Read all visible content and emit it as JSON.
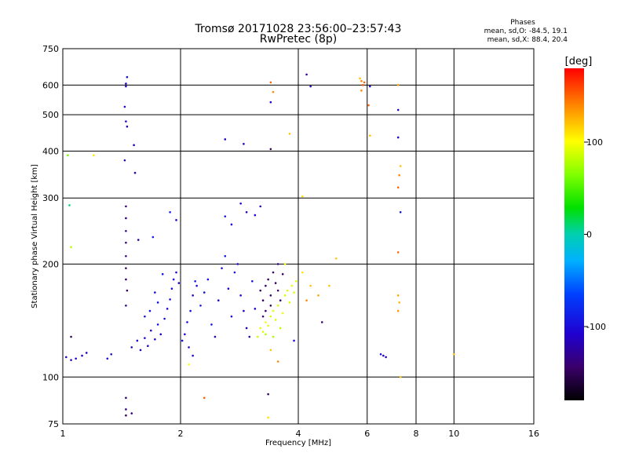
{
  "chart_data": {
    "type": "scatter",
    "title": "Tromsø 20171028 23:56:00–23:57:43",
    "subtitle": "RwPretec (8p)",
    "xlabel": "Frequency [MHz]",
    "ylabel": "Stationary phase Virtual Height [km]",
    "x_scale": "log",
    "y_scale": "log",
    "xlim": [
      1,
      16
    ],
    "ylim": [
      75,
      750
    ],
    "x_ticks": [
      "1",
      "2",
      "4",
      "6",
      "8",
      "10",
      "16"
    ],
    "x_tick_values": [
      1,
      2,
      4,
      6,
      8,
      10,
      16
    ],
    "y_ticks": [
      "75",
      "100",
      "200",
      "300",
      "400",
      "500",
      "600",
      "750"
    ],
    "y_tick_values": [
      75,
      100,
      200,
      300,
      400,
      500,
      600,
      750
    ],
    "grid": true,
    "phase_stats": {
      "heading": "Phases",
      "line_o": "mean, sd,O: -84.5, 19.1",
      "line_x": "mean, sd,X:  88.4, 20.4"
    },
    "colorbar": {
      "label": "[deg]",
      "range": [
        -180,
        180
      ],
      "ticks": [
        "100",
        "0",
        "-100"
      ],
      "tick_values": [
        100,
        0,
        -100
      ]
    },
    "points": [
      {
        "f": 1.02,
        "h": 113,
        "p": -110
      },
      {
        "f": 1.05,
        "h": 111,
        "p": -115
      },
      {
        "f": 1.08,
        "h": 112,
        "p": -110
      },
      {
        "f": 1.12,
        "h": 114,
        "p": -105
      },
      {
        "f": 1.15,
        "h": 116,
        "p": -108
      },
      {
        "f": 1.05,
        "h": 128,
        "p": -150
      },
      {
        "f": 1.3,
        "h": 112,
        "p": -110
      },
      {
        "f": 1.33,
        "h": 115,
        "p": -100
      },
      {
        "f": 1.03,
        "h": 390,
        "p": 60
      },
      {
        "f": 1.04,
        "h": 287,
        "p": 10
      },
      {
        "f": 1.05,
        "h": 222,
        "p": 80
      },
      {
        "f": 1.2,
        "h": 390,
        "p": 110
      },
      {
        "f": 1.45,
        "h": 605,
        "p": -120
      },
      {
        "f": 1.45,
        "h": 595,
        "p": -110
      },
      {
        "f": 1.46,
        "h": 630,
        "p": -95
      },
      {
        "f": 1.44,
        "h": 525,
        "p": -105
      },
      {
        "f": 1.45,
        "h": 480,
        "p": -100
      },
      {
        "f": 1.46,
        "h": 465,
        "p": -110
      },
      {
        "f": 1.44,
        "h": 378,
        "p": -120
      },
      {
        "f": 1.52,
        "h": 415,
        "p": -115
      },
      {
        "f": 1.53,
        "h": 350,
        "p": -120
      },
      {
        "f": 1.45,
        "h": 285,
        "p": -140
      },
      {
        "f": 1.45,
        "h": 265,
        "p": -135
      },
      {
        "f": 1.45,
        "h": 245,
        "p": -130
      },
      {
        "f": 1.45,
        "h": 228,
        "p": -140
      },
      {
        "f": 1.45,
        "h": 210,
        "p": -135
      },
      {
        "f": 1.45,
        "h": 195,
        "p": -145
      },
      {
        "f": 1.45,
        "h": 182,
        "p": -140
      },
      {
        "f": 1.46,
        "h": 170,
        "p": -150
      },
      {
        "f": 1.45,
        "h": 155,
        "p": -130
      },
      {
        "f": 1.56,
        "h": 232,
        "p": -120
      },
      {
        "f": 1.45,
        "h": 88,
        "p": -140
      },
      {
        "f": 1.45,
        "h": 82,
        "p": -135
      },
      {
        "f": 1.45,
        "h": 79,
        "p": -150
      },
      {
        "f": 1.5,
        "h": 80,
        "p": -140
      },
      {
        "f": 1.5,
        "h": 120,
        "p": -115
      },
      {
        "f": 1.55,
        "h": 125,
        "p": -110
      },
      {
        "f": 1.58,
        "h": 118,
        "p": -118
      },
      {
        "f": 1.62,
        "h": 127,
        "p": -105
      },
      {
        "f": 1.65,
        "h": 121,
        "p": -112
      },
      {
        "f": 1.68,
        "h": 133,
        "p": -100
      },
      {
        "f": 1.72,
        "h": 126,
        "p": -108
      },
      {
        "f": 1.75,
        "h": 138,
        "p": -95
      },
      {
        "f": 1.78,
        "h": 130,
        "p": -110
      },
      {
        "f": 1.82,
        "h": 143,
        "p": -100
      },
      {
        "f": 1.85,
        "h": 152,
        "p": -105
      },
      {
        "f": 1.88,
        "h": 161,
        "p": -100
      },
      {
        "f": 1.9,
        "h": 172,
        "p": -95
      },
      {
        "f": 1.92,
        "h": 182,
        "p": -102
      },
      {
        "f": 1.95,
        "h": 190,
        "p": -108
      },
      {
        "f": 1.98,
        "h": 178,
        "p": -110
      },
      {
        "f": 1.72,
        "h": 168,
        "p": -95
      },
      {
        "f": 1.8,
        "h": 188,
        "p": -92
      },
      {
        "f": 1.88,
        "h": 275,
        "p": -85
      },
      {
        "f": 1.95,
        "h": 262,
        "p": -112
      },
      {
        "f": 1.7,
        "h": 236,
        "p": -88
      },
      {
        "f": 1.62,
        "h": 145,
        "p": -100
      },
      {
        "f": 1.67,
        "h": 150,
        "p": -95
      },
      {
        "f": 1.75,
        "h": 158,
        "p": -98
      },
      {
        "f": 2.02,
        "h": 125,
        "p": -100
      },
      {
        "f": 2.05,
        "h": 130,
        "p": -105
      },
      {
        "f": 2.08,
        "h": 140,
        "p": -100
      },
      {
        "f": 2.12,
        "h": 150,
        "p": -100
      },
      {
        "f": 2.15,
        "h": 165,
        "p": -102
      },
      {
        "f": 2.18,
        "h": 180,
        "p": -95
      },
      {
        "f": 2.1,
        "h": 120,
        "p": -110
      },
      {
        "f": 2.15,
        "h": 114,
        "p": -100
      },
      {
        "f": 2.2,
        "h": 175,
        "p": -100
      },
      {
        "f": 2.25,
        "h": 155,
        "p": -90
      },
      {
        "f": 2.3,
        "h": 168,
        "p": -95
      },
      {
        "f": 2.35,
        "h": 182,
        "p": -100
      },
      {
        "f": 2.4,
        "h": 138,
        "p": -95
      },
      {
        "f": 2.45,
        "h": 128,
        "p": -110
      },
      {
        "f": 2.5,
        "h": 160,
        "p": -105
      },
      {
        "f": 2.55,
        "h": 195,
        "p": -100
      },
      {
        "f": 2.6,
        "h": 210,
        "p": -95
      },
      {
        "f": 2.65,
        "h": 172,
        "p": -110
      },
      {
        "f": 2.7,
        "h": 145,
        "p": -110
      },
      {
        "f": 2.75,
        "h": 190,
        "p": -100
      },
      {
        "f": 2.8,
        "h": 200,
        "p": -105
      },
      {
        "f": 2.85,
        "h": 165,
        "p": -100
      },
      {
        "f": 2.9,
        "h": 150,
        "p": -108
      },
      {
        "f": 2.95,
        "h": 135,
        "p": -112
      },
      {
        "f": 3.0,
        "h": 128,
        "p": -115
      },
      {
        "f": 3.05,
        "h": 180,
        "p": -100
      },
      {
        "f": 3.1,
        "h": 152,
        "p": -110
      },
      {
        "f": 2.6,
        "h": 268,
        "p": -100
      },
      {
        "f": 2.7,
        "h": 255,
        "p": -110
      },
      {
        "f": 2.85,
        "h": 290,
        "p": -105
      },
      {
        "f": 2.95,
        "h": 275,
        "p": -110
      },
      {
        "f": 3.2,
        "h": 285,
        "p": -110
      },
      {
        "f": 3.1,
        "h": 270,
        "p": -105
      },
      {
        "f": 2.6,
        "h": 430,
        "p": -110
      },
      {
        "f": 2.9,
        "h": 418,
        "p": -105
      },
      {
        "f": 2.3,
        "h": 88,
        "p": 150
      },
      {
        "f": 2.1,
        "h": 108,
        "p": 100
      },
      {
        "f": 3.2,
        "h": 135,
        "p": 95
      },
      {
        "f": 3.25,
        "h": 132,
        "p": 90
      },
      {
        "f": 3.3,
        "h": 140,
        "p": 98
      },
      {
        "f": 3.35,
        "h": 137,
        "p": 92
      },
      {
        "f": 3.4,
        "h": 145,
        "p": 88
      },
      {
        "f": 3.45,
        "h": 150,
        "p": 95
      },
      {
        "f": 3.5,
        "h": 142,
        "p": 90
      },
      {
        "f": 3.55,
        "h": 155,
        "p": 88
      },
      {
        "f": 3.6,
        "h": 160,
        "p": 92
      },
      {
        "f": 3.65,
        "h": 148,
        "p": 95
      },
      {
        "f": 3.7,
        "h": 165,
        "p": 90
      },
      {
        "f": 3.75,
        "h": 170,
        "p": 92
      },
      {
        "f": 3.8,
        "h": 158,
        "p": 88
      },
      {
        "f": 3.85,
        "h": 175,
        "p": 95
      },
      {
        "f": 3.9,
        "h": 168,
        "p": 90
      },
      {
        "f": 3.95,
        "h": 180,
        "p": 92
      },
      {
        "f": 3.3,
        "h": 130,
        "p": 80
      },
      {
        "f": 3.45,
        "h": 128,
        "p": 75
      },
      {
        "f": 3.6,
        "h": 135,
        "p": 82
      },
      {
        "f": 3.15,
        "h": 128,
        "p": 85
      },
      {
        "f": 3.2,
        "h": 170,
        "p": -145
      },
      {
        "f": 3.25,
        "h": 160,
        "p": -150
      },
      {
        "f": 3.3,
        "h": 175,
        "p": -140
      },
      {
        "f": 3.35,
        "h": 182,
        "p": -145
      },
      {
        "f": 3.4,
        "h": 165,
        "p": -135
      },
      {
        "f": 3.45,
        "h": 190,
        "p": -140
      },
      {
        "f": 3.5,
        "h": 178,
        "p": -150
      },
      {
        "f": 3.55,
        "h": 170,
        "p": -145
      },
      {
        "f": 3.6,
        "h": 160,
        "p": -138
      },
      {
        "f": 3.65,
        "h": 188,
        "p": -142
      },
      {
        "f": 3.3,
        "h": 150,
        "p": -140
      },
      {
        "f": 3.4,
        "h": 155,
        "p": -145
      },
      {
        "f": 3.25,
        "h": 145,
        "p": -140
      },
      {
        "f": 3.55,
        "h": 200,
        "p": -130
      },
      {
        "f": 3.7,
        "h": 200,
        "p": 100
      },
      {
        "f": 4.1,
        "h": 190,
        "p": 110
      },
      {
        "f": 4.3,
        "h": 175,
        "p": 120
      },
      {
        "f": 4.5,
        "h": 165,
        "p": 130
      },
      {
        "f": 4.8,
        "h": 175,
        "p": 120
      },
      {
        "f": 5.0,
        "h": 207,
        "p": 120
      },
      {
        "f": 4.2,
        "h": 160,
        "p": 140
      },
      {
        "f": 4.6,
        "h": 140,
        "p": -140
      },
      {
        "f": 3.4,
        "h": 118,
        "p": 120
      },
      {
        "f": 3.55,
        "h": 110,
        "p": 140
      },
      {
        "f": 3.9,
        "h": 125,
        "p": -100
      },
      {
        "f": 3.35,
        "h": 90,
        "p": -150
      },
      {
        "f": 3.35,
        "h": 78,
        "p": 110
      },
      {
        "f": 3.4,
        "h": 610,
        "p": 150
      },
      {
        "f": 3.45,
        "h": 575,
        "p": 140
      },
      {
        "f": 3.4,
        "h": 540,
        "p": -110
      },
      {
        "f": 3.4,
        "h": 405,
        "p": -150
      },
      {
        "f": 3.8,
        "h": 445,
        "p": 120
      },
      {
        "f": 4.2,
        "h": 640,
        "p": -130
      },
      {
        "f": 4.3,
        "h": 595,
        "p": -110
      },
      {
        "f": 4.1,
        "h": 303,
        "p": 110
      },
      {
        "f": 5.8,
        "h": 615,
        "p": 140
      },
      {
        "f": 5.85,
        "h": 600,
        "p": 155
      },
      {
        "f": 5.9,
        "h": 610,
        "p": 150
      },
      {
        "f": 5.8,
        "h": 580,
        "p": 140
      },
      {
        "f": 5.75,
        "h": 625,
        "p": 120
      },
      {
        "f": 6.1,
        "h": 595,
        "p": -110
      },
      {
        "f": 6.05,
        "h": 530,
        "p": 150
      },
      {
        "f": 6.1,
        "h": 440,
        "p": 120
      },
      {
        "f": 7.2,
        "h": 600,
        "p": 130
      },
      {
        "f": 7.2,
        "h": 515,
        "p": -120
      },
      {
        "f": 7.2,
        "h": 435,
        "p": -115
      },
      {
        "f": 7.3,
        "h": 365,
        "p": 120
      },
      {
        "f": 7.25,
        "h": 345,
        "p": 140
      },
      {
        "f": 7.2,
        "h": 320,
        "p": 150
      },
      {
        "f": 7.3,
        "h": 275,
        "p": -95
      },
      {
        "f": 7.2,
        "h": 215,
        "p": 150
      },
      {
        "f": 7.2,
        "h": 165,
        "p": 130
      },
      {
        "f": 7.25,
        "h": 158,
        "p": 125
      },
      {
        "f": 7.2,
        "h": 150,
        "p": 135
      },
      {
        "f": 7.3,
        "h": 100,
        "p": 120
      },
      {
        "f": 6.5,
        "h": 115,
        "p": -100
      },
      {
        "f": 6.6,
        "h": 114,
        "p": -110
      },
      {
        "f": 6.7,
        "h": 113,
        "p": -120
      },
      {
        "f": 10.0,
        "h": 115,
        "p": 120
      }
    ]
  }
}
